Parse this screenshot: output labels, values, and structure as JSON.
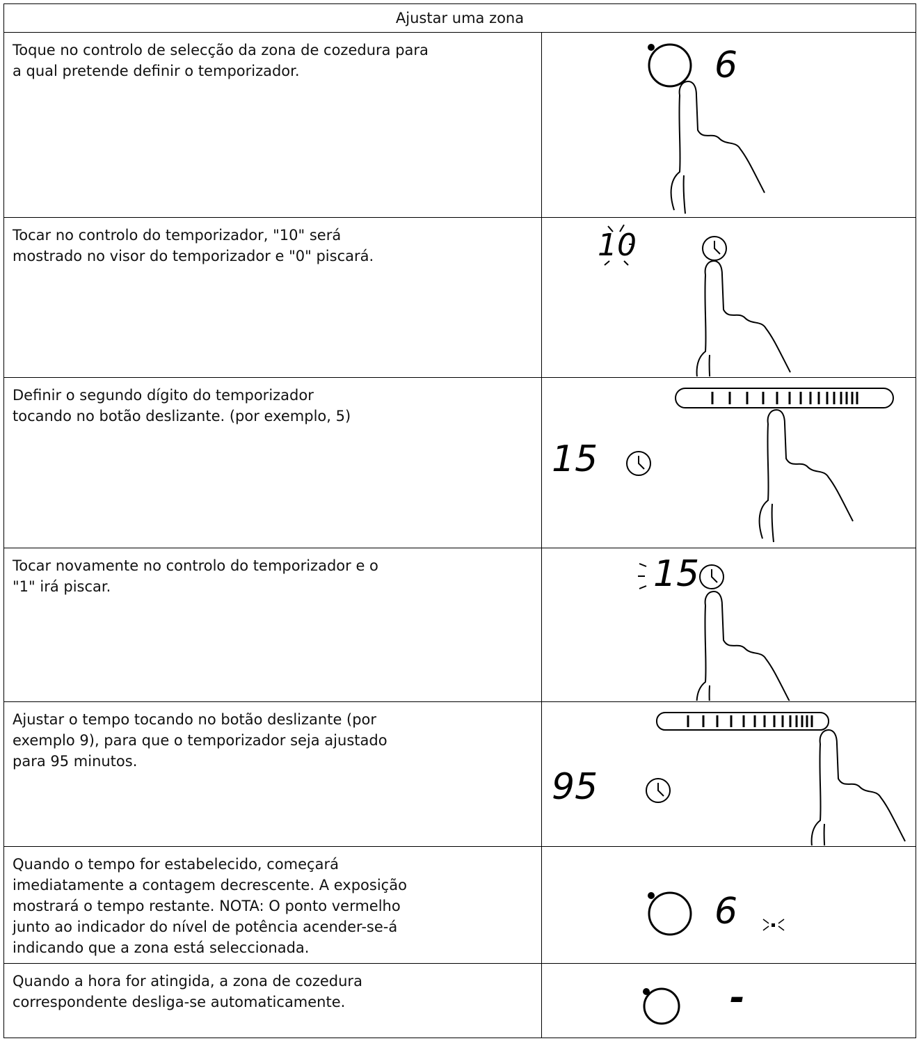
{
  "header": {
    "title": "Ajustar uma zona"
  },
  "rows": [
    {
      "lines": [
        "Toque no controlo de selecção da zona de cozedura para",
        "a qual pretende definir o temporizador."
      ],
      "display": "6"
    },
    {
      "lines": [
        "Tocar no controlo do temporizador, \"10\" será",
        "mostrado no visor do temporizador e \"0\" piscará."
      ],
      "display": "10"
    },
    {
      "lines": [
        "Definir o segundo dígito do temporizador",
        "tocando no botão deslizante. (por exemplo, 5)"
      ],
      "display": "15"
    },
    {
      "lines": [
        "Tocar novamente no controlo do temporizador e o",
        "\"1\" irá piscar."
      ],
      "display": "15"
    },
    {
      "lines": [
        "Ajustar o tempo tocando no botão deslizante (por",
        "exemplo 9), para que o temporizador seja ajustado",
        "para 95 minutos."
      ],
      "display": "95"
    },
    {
      "lines": [
        "Quando o tempo for estabelecido, começará",
        "imediatamente a contagem decrescente. A exposição",
        "mostrará o tempo restante. NOTA: O ponto vermelho",
        "junto ao indicador do nível de potência acender-se-á",
        "indicando que a zona está seleccionada."
      ],
      "display": "6"
    },
    {
      "lines": [
        "Quando a hora for atingida, a zona de cozedura",
        "correspondente desliga-se automaticamente."
      ],
      "display": "-"
    }
  ]
}
